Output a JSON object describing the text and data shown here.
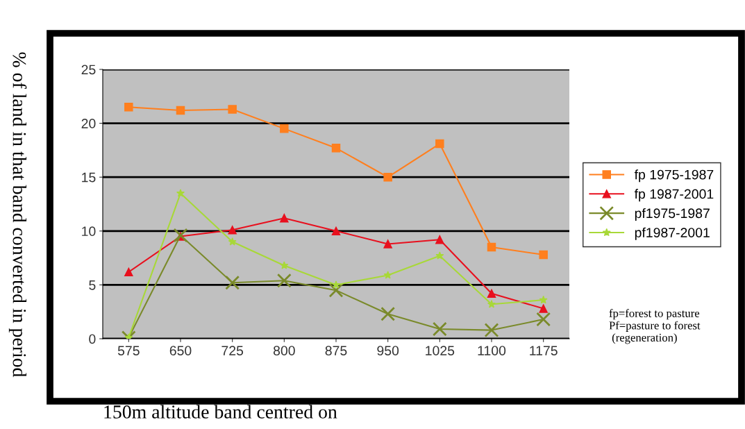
{
  "chart_data": {
    "type": "line",
    "xlabel": "150m altitude band centred on",
    "ylabel": "% of land in that band converted in period",
    "categories": [
      "575",
      "650",
      "725",
      "800",
      "875",
      "950",
      "1025",
      "1100",
      "1175"
    ],
    "series": [
      {
        "name": "fp 1975-1987",
        "color": "#ff7f1e",
        "marker": "square",
        "values": [
          21.5,
          21.2,
          21.3,
          19.5,
          17.7,
          15.0,
          18.1,
          8.5,
          7.8
        ]
      },
      {
        "name": "fp 1987-2001",
        "color": "#e8101e",
        "marker": "triangle",
        "values": [
          6.2,
          9.5,
          10.1,
          11.2,
          10.0,
          8.8,
          9.2,
          4.2,
          2.8
        ]
      },
      {
        "name": "pf1975-1987",
        "color": "#7a8a2a",
        "marker": "cross",
        "values": [
          0.1,
          9.6,
          5.2,
          5.4,
          4.5,
          2.3,
          0.9,
          0.8,
          1.8
        ]
      },
      {
        "name": "pf1987-2001",
        "color": "#a8d838",
        "marker": "star",
        "values": [
          0.1,
          13.5,
          9.0,
          6.8,
          5.0,
          5.9,
          7.7,
          3.2,
          3.6
        ]
      }
    ],
    "ylim": [
      0,
      25
    ],
    "yticks": [
      0,
      5,
      10,
      15,
      20,
      25
    ],
    "grid": "y",
    "legend": "right",
    "annotations": [
      "fp=forest to pasture\nPf=pasture to forest\n (regeneration)"
    ]
  }
}
